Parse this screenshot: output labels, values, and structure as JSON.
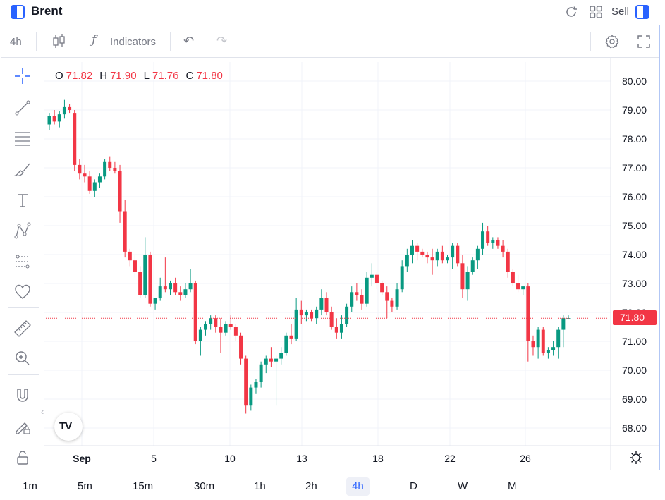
{
  "app": {
    "title": "Brent",
    "sell_label": "Sell"
  },
  "toolbar": {
    "interval": "4h",
    "indicators_label": "Indicators"
  },
  "left_tools": [
    "crosshair-icon",
    "trend-line-icon",
    "horizontal-lines-icon",
    "brush-icon",
    "text-icon",
    "pattern-icon",
    "long-position-icon",
    "heart-icon",
    "ruler-icon",
    "zoom-in-icon",
    "magnet-icon",
    "lock-pencil-icon",
    "lock-icon"
  ],
  "ohlc": {
    "o_label": "O",
    "o": "71.82",
    "h_label": "H",
    "h": "71.90",
    "l_label": "L",
    "l": "71.76",
    "c_label": "C",
    "c": "71.80"
  },
  "last_price_label": "71.80",
  "timeframes": [
    {
      "label": "1m",
      "active": false
    },
    {
      "label": "5m",
      "active": false
    },
    {
      "label": "15m",
      "active": false
    },
    {
      "label": "30m",
      "active": false
    },
    {
      "label": "1h",
      "active": false
    },
    {
      "label": "2h",
      "active": false
    },
    {
      "label": "4h",
      "active": true
    },
    {
      "label": "D",
      "active": false
    },
    {
      "label": "W",
      "active": false
    },
    {
      "label": "M",
      "active": false
    }
  ],
  "colors": {
    "up": "#089981",
    "down": "#f23645",
    "accent": "#2962ff",
    "grid": "#f0f3fa"
  },
  "chart_data": {
    "type": "candlestick",
    "title": "Brent",
    "interval": "4h",
    "ylim": [
      67.3,
      80.5
    ],
    "y_ticks": [
      "80.00",
      "79.00",
      "78.00",
      "77.00",
      "76.00",
      "75.00",
      "74.00",
      "73.00",
      "72.00",
      "71.00",
      "70.00",
      "69.00",
      "68.00"
    ],
    "x_ticks": [
      "Sep",
      "5",
      "10",
      "13",
      "18",
      "22",
      "26"
    ],
    "last_price": 71.8,
    "series": [
      {
        "name": "Brent",
        "ohlc": [
          [
            78.5,
            78.9,
            78.3,
            78.8
          ],
          [
            78.8,
            79.0,
            78.5,
            78.6
          ],
          [
            78.6,
            78.95,
            78.4,
            78.85
          ],
          [
            78.85,
            79.35,
            78.7,
            79.1
          ],
          [
            79.1,
            79.2,
            78.9,
            79.0
          ],
          [
            78.9,
            79.0,
            76.9,
            77.1
          ],
          [
            77.1,
            77.3,
            76.6,
            76.8
          ],
          [
            76.8,
            77.1,
            76.5,
            76.7
          ],
          [
            76.7,
            76.9,
            76.1,
            76.2
          ],
          [
            76.2,
            76.6,
            76.0,
            76.5
          ],
          [
            76.5,
            76.8,
            76.3,
            76.7
          ],
          [
            76.7,
            77.3,
            76.6,
            77.2
          ],
          [
            77.2,
            77.4,
            76.9,
            77.0
          ],
          [
            77.0,
            77.2,
            76.8,
            76.9
          ],
          [
            76.9,
            77.1,
            75.1,
            75.5
          ],
          [
            75.5,
            75.9,
            73.9,
            74.1
          ],
          [
            74.1,
            74.2,
            73.6,
            73.8
          ],
          [
            73.8,
            74.0,
            73.2,
            73.4
          ],
          [
            73.4,
            73.6,
            72.5,
            72.6
          ],
          [
            72.6,
            74.6,
            72.5,
            74.0
          ],
          [
            74.0,
            74.1,
            72.2,
            72.3
          ],
          [
            72.3,
            72.5,
            72.1,
            72.5
          ],
          [
            72.5,
            73.2,
            72.4,
            72.9
          ],
          [
            72.9,
            73.9,
            72.7,
            72.8
          ],
          [
            72.8,
            73.1,
            72.6,
            73.0
          ],
          [
            73.0,
            73.2,
            72.6,
            72.7
          ],
          [
            72.7,
            72.9,
            72.4,
            72.6
          ],
          [
            72.6,
            73.0,
            72.5,
            72.8
          ],
          [
            72.8,
            73.5,
            72.7,
            73.0
          ],
          [
            73.0,
            73.1,
            70.9,
            71.0
          ],
          [
            71.0,
            71.5,
            70.5,
            71.4
          ],
          [
            71.4,
            71.7,
            71.2,
            71.6
          ],
          [
            71.6,
            71.9,
            71.4,
            71.8
          ],
          [
            71.8,
            71.9,
            71.3,
            71.5
          ],
          [
            71.5,
            71.8,
            70.6,
            71.3
          ],
          [
            71.3,
            71.7,
            71.2,
            71.6
          ],
          [
            71.6,
            71.9,
            71.4,
            71.5
          ],
          [
            71.5,
            71.6,
            71.0,
            71.2
          ],
          [
            71.2,
            71.3,
            70.2,
            70.4
          ],
          [
            70.4,
            70.5,
            68.5,
            68.8
          ],
          [
            68.8,
            69.5,
            68.6,
            69.4
          ],
          [
            69.4,
            69.7,
            69.2,
            69.6
          ],
          [
            69.6,
            70.3,
            69.4,
            70.2
          ],
          [
            70.2,
            70.5,
            69.9,
            70.4
          ],
          [
            70.4,
            70.8,
            70.1,
            70.3
          ],
          [
            70.3,
            70.5,
            68.8,
            70.4
          ],
          [
            70.4,
            70.8,
            70.2,
            70.6
          ],
          [
            70.6,
            71.3,
            70.5,
            71.2
          ],
          [
            71.2,
            71.6,
            70.9,
            71.1
          ],
          [
            71.1,
            72.5,
            71.0,
            72.1
          ],
          [
            72.1,
            72.4,
            71.6,
            71.9
          ],
          [
            71.9,
            72.1,
            71.7,
            72.0
          ],
          [
            72.0,
            72.1,
            71.7,
            71.8
          ],
          [
            71.8,
            72.2,
            71.6,
            72.1
          ],
          [
            72.1,
            72.8,
            71.9,
            72.5
          ],
          [
            72.5,
            72.7,
            71.9,
            72.0
          ],
          [
            72.0,
            72.2,
            71.4,
            71.5
          ],
          [
            71.5,
            71.8,
            71.1,
            71.3
          ],
          [
            71.3,
            71.9,
            71.1,
            71.6
          ],
          [
            71.6,
            72.3,
            71.5,
            72.2
          ],
          [
            72.2,
            72.9,
            72.0,
            72.7
          ],
          [
            72.7,
            73.0,
            72.4,
            72.6
          ],
          [
            72.6,
            72.8,
            72.1,
            72.3
          ],
          [
            72.3,
            73.4,
            72.2,
            73.2
          ],
          [
            73.2,
            73.7,
            72.9,
            73.3
          ],
          [
            73.3,
            73.4,
            72.8,
            73.0
          ],
          [
            73.0,
            73.1,
            72.6,
            72.7
          ],
          [
            72.7,
            72.9,
            71.8,
            72.4
          ],
          [
            72.4,
            72.5,
            72.0,
            72.2
          ],
          [
            72.2,
            73.0,
            72.1,
            72.8
          ],
          [
            72.8,
            73.8,
            72.7,
            73.6
          ],
          [
            73.6,
            74.2,
            73.4,
            74.0
          ],
          [
            74.0,
            74.5,
            73.7,
            74.3
          ],
          [
            74.3,
            74.4,
            73.8,
            74.1
          ],
          [
            74.1,
            74.2,
            73.9,
            74.0
          ],
          [
            74.0,
            74.1,
            73.7,
            73.9
          ],
          [
            73.9,
            74.2,
            73.3,
            73.8
          ],
          [
            73.8,
            74.2,
            73.6,
            74.1
          ],
          [
            74.1,
            74.3,
            73.7,
            73.8
          ],
          [
            73.8,
            74.0,
            73.7,
            73.9
          ],
          [
            73.9,
            74.4,
            73.5,
            74.3
          ],
          [
            74.3,
            74.4,
            73.6,
            73.7
          ],
          [
            73.7,
            74.0,
            72.5,
            72.8
          ],
          [
            72.8,
            73.6,
            72.4,
            73.4
          ],
          [
            73.4,
            73.9,
            73.3,
            73.8
          ],
          [
            73.8,
            74.3,
            73.5,
            74.2
          ],
          [
            74.2,
            75.1,
            74.0,
            74.8
          ],
          [
            74.8,
            75.0,
            74.3,
            74.4
          ],
          [
            74.4,
            74.6,
            74.2,
            74.5
          ],
          [
            74.5,
            74.6,
            74.2,
            74.3
          ],
          [
            74.3,
            74.5,
            73.9,
            74.1
          ],
          [
            74.1,
            74.2,
            73.2,
            73.4
          ],
          [
            73.4,
            73.5,
            72.9,
            73.0
          ],
          [
            73.0,
            73.3,
            72.7,
            72.8
          ],
          [
            72.8,
            72.9,
            72.6,
            72.9
          ],
          [
            72.9,
            73.0,
            70.3,
            71.0
          ],
          [
            71.0,
            71.2,
            70.5,
            70.8
          ],
          [
            70.8,
            71.5,
            70.4,
            71.4
          ],
          [
            71.4,
            71.5,
            70.5,
            70.6
          ],
          [
            70.6,
            70.8,
            70.4,
            70.7
          ],
          [
            70.7,
            71.0,
            70.5,
            70.8
          ],
          [
            70.8,
            71.5,
            70.4,
            71.4
          ],
          [
            71.4,
            71.9,
            70.8,
            71.8
          ],
          [
            71.8,
            71.9,
            71.76,
            71.8
          ]
        ]
      }
    ]
  }
}
